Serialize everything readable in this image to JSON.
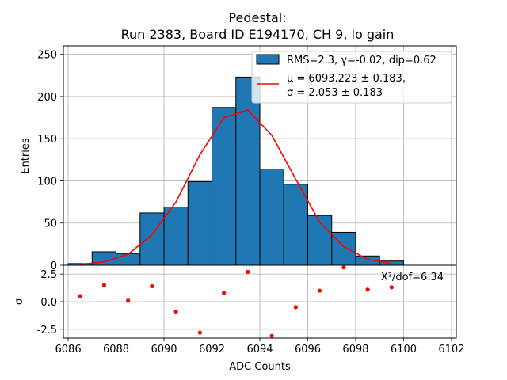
{
  "chart_data": {
    "type": "bar",
    "title_line1": "Pedestal:",
    "title_line2": "Run 2383, Board ID E194170, CH 9, lo gain",
    "xlabel": "ADC Counts",
    "ylabel": "Entries",
    "resid_ylabel": "σ",
    "xlim": [
      6085.8,
      6102.2
    ],
    "ylim": [
      0,
      260
    ],
    "resid_ylim": [
      -3.3,
      3.3
    ],
    "grid": true,
    "x_ticks": [
      "6086",
      "6088",
      "6090",
      "6092",
      "6094",
      "6096",
      "6098",
      "6100",
      "6102"
    ],
    "y_ticks": [
      "0",
      "50",
      "100",
      "150",
      "200",
      "250"
    ],
    "resid_ticks": [
      "2.5",
      "0.0",
      "-2.5"
    ],
    "bin_edges": [
      6086,
      6087,
      6088,
      6089,
      6090,
      6091,
      6092,
      6093,
      6094,
      6095,
      6096,
      6097,
      6098,
      6099,
      6100
    ],
    "counts": [
      2,
      16,
      14,
      62,
      69,
      99,
      187,
      223,
      114,
      96,
      59,
      39,
      11,
      5
    ],
    "fit": {
      "x": [
        6086.5,
        6087.5,
        6088.5,
        6089.5,
        6090.5,
        6091.5,
        6092.5,
        6093.5,
        6094.5,
        6095.5,
        6096.5,
        6097.5,
        6098.5,
        6099.5
      ],
      "y": [
        1,
        4,
        13,
        36,
        75,
        131,
        175,
        184,
        154,
        102,
        51,
        22,
        7,
        2
      ]
    },
    "residuals": {
      "x": [
        6086.5,
        6087.5,
        6088.5,
        6089.5,
        6090.5,
        6091.5,
        6092.5,
        6093.5,
        6094.5,
        6095.5,
        6096.5,
        6097.5,
        6098.5,
        6099.5
      ],
      "y": [
        0.5,
        1.5,
        0.1,
        1.4,
        -0.9,
        -2.8,
        0.8,
        2.7,
        -3.1,
        -0.5,
        1.0,
        3.1,
        1.1,
        1.3
      ]
    },
    "colors": {
      "bar": "#1f77b4",
      "fit": "#ff0000",
      "resid": "#ff0000",
      "grid": "#b0b0b0"
    },
    "legend": {
      "placement": "top-right",
      "hist_label": "RMS=2.3, γ=-0.02, dip=0.62",
      "fit_label_line1": "μ = 6093.223 ± 0.183,",
      "fit_label_line2": "σ = 2.053 ± 0.183"
    },
    "chi2_text": "X²/dof=6.34"
  }
}
